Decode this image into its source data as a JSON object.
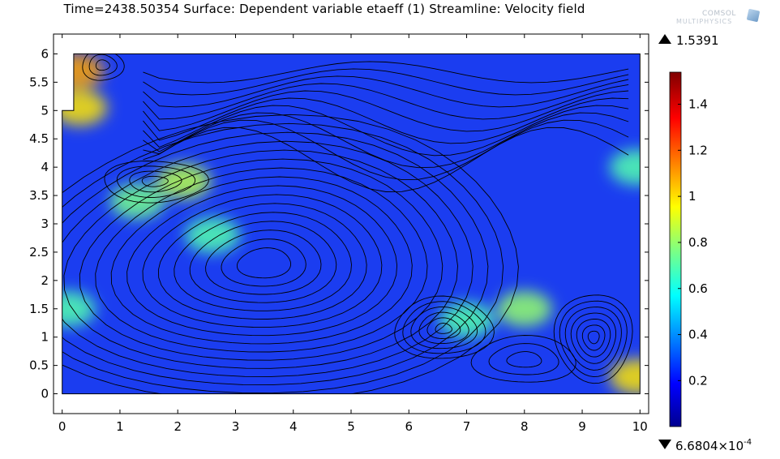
{
  "title": "Time=2438.50354   Surface: Dependent variable etaeff (1)  Streamline: Velocity field",
  "logo": {
    "line1": "COMSOL",
    "line2": "MULTIPHYSICS"
  },
  "icons": {
    "max": "triangle-up-icon",
    "min": "triangle-down-icon",
    "logo": "comsol-cube-icon"
  },
  "chart_data": {
    "type": "heatmap",
    "title": "Time=2438.50354   Surface: Dependent variable etaeff (1)  Streamline: Velocity field",
    "xlabel": "",
    "ylabel": "",
    "xlim": [
      -0.15,
      10.15
    ],
    "ylim": [
      -0.35,
      6.35
    ],
    "x_ticks": [
      "0",
      "1",
      "2",
      "3",
      "4",
      "5",
      "6",
      "7",
      "8",
      "9",
      "10"
    ],
    "y_ticks": [
      "0",
      "0.5",
      "1",
      "1.5",
      "2",
      "2.5",
      "3",
      "3.5",
      "4",
      "4.5",
      "5",
      "5.5",
      "6"
    ],
    "x_tick_values": [
      0,
      1,
      2,
      3,
      4,
      5,
      6,
      7,
      8,
      9,
      10
    ],
    "y_tick_values": [
      0,
      0.5,
      1,
      1.5,
      2,
      2.5,
      3,
      3.5,
      4,
      4.5,
      5,
      5.5,
      6
    ],
    "domain_outline": [
      [
        0,
        0
      ],
      [
        10,
        0
      ],
      [
        10,
        6
      ],
      [
        0.2,
        6
      ],
      [
        0.2,
        5
      ],
      [
        0,
        5
      ]
    ],
    "colorbar": {
      "max_text": "1.5391",
      "min_text": "6.6804×10",
      "min_exponent": "-4",
      "min": 0.00066804,
      "max": 1.5391,
      "tick_labels": [
        "1.4",
        "1.2",
        "1",
        "0.8",
        "0.6",
        "0.4",
        "0.2"
      ],
      "tick_values": [
        1.4,
        1.2,
        1.0,
        0.8,
        0.6,
        0.4,
        0.2
      ],
      "colormap": "jet"
    },
    "hotspots": [
      {
        "x": 0.25,
        "y": 5.7,
        "v": 1.1
      },
      {
        "x": 0.3,
        "y": 5.05,
        "v": 1.0
      },
      {
        "x": 2.1,
        "y": 3.75,
        "v": 0.85
      },
      {
        "x": 8.0,
        "y": 1.5,
        "v": 0.8
      },
      {
        "x": 9.95,
        "y": 0.3,
        "v": 1.0
      },
      {
        "x": 9.95,
        "y": 4.0,
        "v": 0.7
      },
      {
        "x": 1.3,
        "y": 3.4,
        "v": 0.75
      },
      {
        "x": 2.6,
        "y": 2.8,
        "v": 0.7
      },
      {
        "x": 0.1,
        "y": 1.5,
        "v": 0.7
      },
      {
        "x": 7.0,
        "y": 1.3,
        "v": 0.7
      }
    ],
    "vortex_centers": [
      {
        "x": 3.5,
        "y": 2.0
      },
      {
        "x": 6.6,
        "y": 1.1
      },
      {
        "x": 9.2,
        "y": 1.0
      },
      {
        "x": 1.6,
        "y": 3.7
      },
      {
        "x": 0.7,
        "y": 5.8
      }
    ]
  }
}
